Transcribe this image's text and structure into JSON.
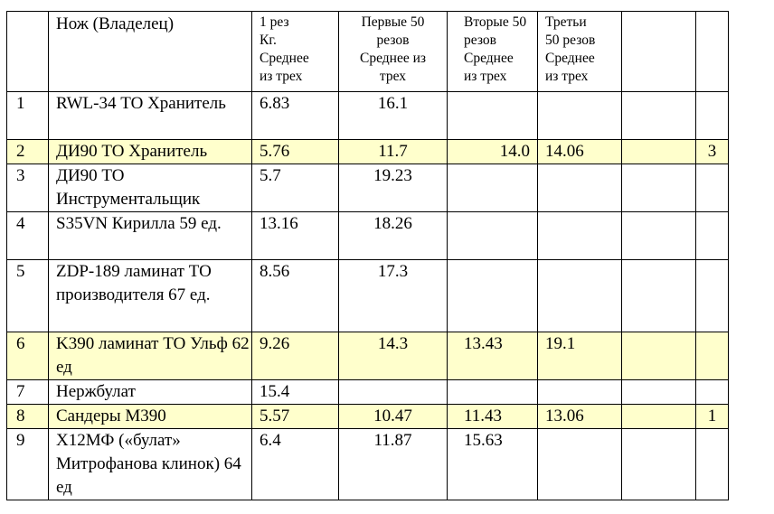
{
  "table": {
    "header": [
      "",
      "Нож (Владелец)",
      "1 рез\nКг.\nСреднее\nиз трех",
      "Первые 50\nрезов\nСреднее из\nтрех",
      "Вторые 50\nрезов\nСреднее\nиз трех",
      "Третьи\n50 резов\nСреднее\nиз трех",
      "",
      ""
    ],
    "rows": [
      {
        "cells": [
          "1",
          "RWL-34 ТО Хранитель",
          "6.83",
          "16.1",
          "",
          "",
          "",
          ""
        ],
        "highlight": false
      },
      {
        "cells": [
          "2",
          "ДИ90 ТО Хранитель",
          "5.76",
          "11.7",
          "14.0",
          "14.06",
          "",
          "3"
        ],
        "highlight": true
      },
      {
        "cells": [
          "3",
          "ДИ90 ТО Инструментальщик",
          "5.7",
          "19.23",
          "",
          "",
          "",
          ""
        ],
        "highlight": false
      },
      {
        "cells": [
          "4",
          "S35VN Кирилла 59 ед.",
          "13.16",
          "18.26",
          "",
          "",
          "",
          ""
        ],
        "highlight": false
      },
      {
        "cells": [
          "5",
          "ZDP-189 ламинат ТО производителя 67 ед.",
          "8.56",
          "17.3",
          "",
          "",
          "",
          ""
        ],
        "highlight": false
      },
      {
        "cells": [
          "6",
          "K390 ламинат ТО Ульф 62 ед",
          "9.26",
          "14.3",
          "13.43",
          "19.1",
          "",
          ""
        ],
        "highlight": true
      },
      {
        "cells": [
          "7",
          "Нержбулат",
          "15.4",
          "",
          "",
          "",
          "",
          ""
        ],
        "highlight": false
      },
      {
        "cells": [
          "8",
          "Сандеры М390",
          "5.57",
          "10.47",
          "11.43",
          "13.06",
          "",
          "1"
        ],
        "highlight": true
      },
      {
        "cells": [
          "9",
          "Х12МФ («булат» Митрофанова клинок) 64 ед",
          "6.4",
          "11.87",
          "15.63",
          "",
          "",
          ""
        ],
        "highlight": false
      }
    ],
    "highlight_color": "#ffffcc"
  }
}
